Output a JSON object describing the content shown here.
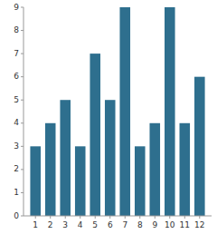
{
  "chart_data": {
    "type": "bar",
    "x": [
      1,
      2,
      3,
      4,
      5,
      6,
      7,
      8,
      9,
      10,
      11,
      12
    ],
    "values": [
      3,
      4,
      5,
      3,
      7,
      5,
      9,
      3,
      4,
      9,
      4,
      6
    ],
    "color": "#2e6f8e",
    "xlim": [
      0.2,
      12.8
    ],
    "xticks": [
      1,
      2,
      3,
      4,
      5,
      6,
      7,
      8,
      9,
      10,
      11,
      12
    ],
    "ylim": [
      0,
      9
    ],
    "yticks": [
      0,
      1,
      2,
      3,
      4,
      5,
      6,
      7,
      8,
      9
    ],
    "grid": false
  }
}
